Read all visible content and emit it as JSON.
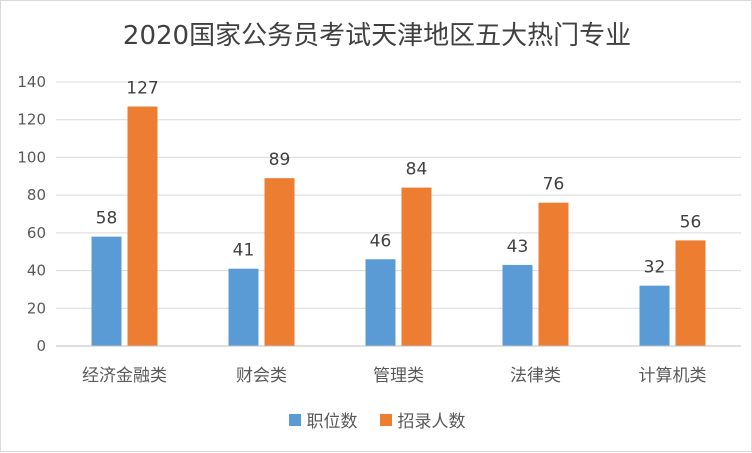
{
  "chart_data": {
    "type": "bar",
    "title": "2020国家公务员考试天津地区五大热门专业",
    "categories": [
      "经济金融类",
      "财会类",
      "管理类",
      "法律类",
      "计算机类"
    ],
    "series": [
      {
        "name": "职位数",
        "values": [
          58,
          41,
          46,
          43,
          32
        ],
        "color": "#5b9bd5"
      },
      {
        "name": "招录人数",
        "values": [
          127,
          89,
          84,
          76,
          56
        ],
        "color": "#ed7d31"
      }
    ],
    "ylim": [
      0,
      140
    ],
    "yticks": [
      0,
      20,
      40,
      60,
      80,
      100,
      120,
      140
    ],
    "grid": true,
    "legend": "bottom"
  }
}
